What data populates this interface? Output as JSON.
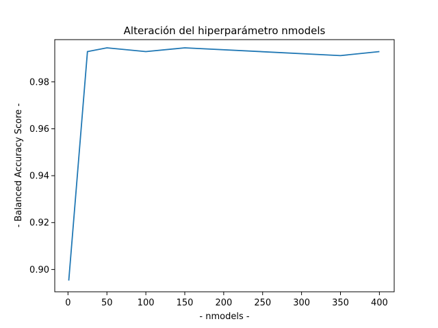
{
  "chart_data": {
    "type": "line",
    "title": "Alteración del hiperparámetro nmodels",
    "xlabel": "- nmodels -",
    "ylabel": "- Balanced Accuracy Score -",
    "xlim": [
      -17,
      419
    ],
    "ylim": [
      0.8905,
      0.998
    ],
    "xticks": [
      0,
      50,
      100,
      150,
      200,
      250,
      300,
      350,
      400
    ],
    "yticks": [
      0.9,
      0.92,
      0.94,
      0.96,
      0.98
    ],
    "xtick_labels": [
      "0",
      "50",
      "100",
      "150",
      "200",
      "250",
      "300",
      "350",
      "400"
    ],
    "ytick_labels": [
      "0.90",
      "0.92",
      "0.94",
      "0.96",
      "0.98"
    ],
    "grid": false,
    "series": [
      {
        "color": "#1f77b4",
        "x": [
          1,
          25,
          50,
          100,
          150,
          350,
          400
        ],
        "y": [
          0.8953,
          0.9929,
          0.9945,
          0.9929,
          0.9945,
          0.9912,
          0.9929
        ]
      }
    ]
  }
}
